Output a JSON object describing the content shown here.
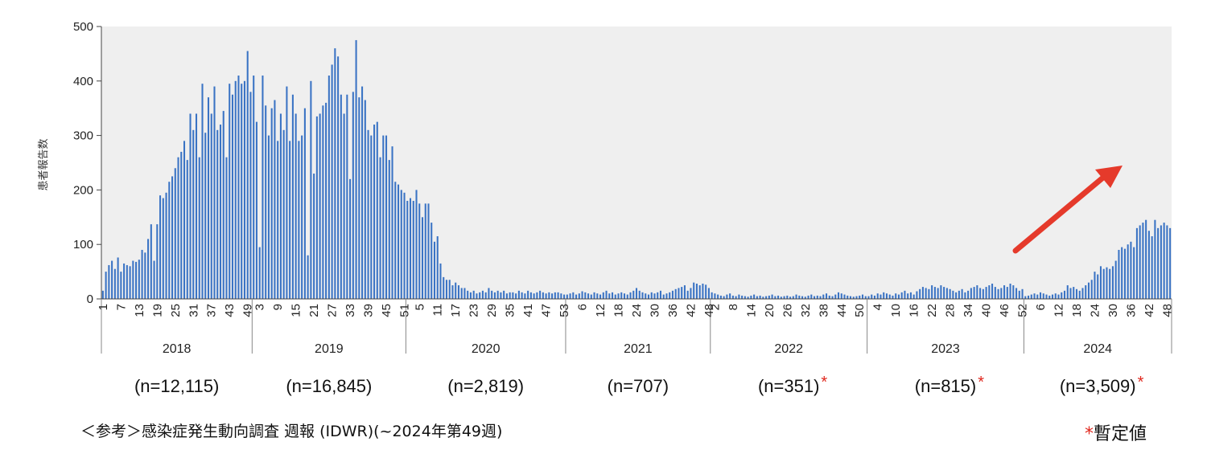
{
  "chart_data": {
    "type": "bar",
    "ylabel": "患者報告数",
    "ylim": [
      0,
      500
    ],
    "yticks": [
      0,
      100,
      200,
      300,
      400,
      500
    ],
    "bar_color": "#3a73c4",
    "background_color": "#efefef",
    "arrow_color": "#e53a2b",
    "grid": false,
    "years": [
      {
        "year": "2018",
        "count_label": "(n=12,115)",
        "provisional": false,
        "week_labels": [
          "1",
          "7",
          "13",
          "19",
          "25",
          "31",
          "37",
          "43",
          "49"
        ],
        "values": [
          15,
          50,
          62,
          70,
          55,
          76,
          50,
          65,
          62,
          60,
          70,
          68,
          72,
          90,
          85,
          110,
          137,
          70,
          137,
          190,
          185,
          195,
          215,
          225,
          240,
          260,
          270,
          290,
          255,
          340,
          310,
          340,
          260,
          395,
          305,
          370,
          340,
          390,
          310,
          320,
          345,
          260,
          395,
          375,
          400,
          410,
          395,
          400,
          455,
          380
        ]
      },
      {
        "year": "2019",
        "count_label": "(n=16,845)",
        "provisional": false,
        "week_labels": [
          "3",
          "9",
          "15",
          "21",
          "27",
          "33",
          "39",
          "45",
          "51"
        ],
        "values": [
          410,
          325,
          95,
          410,
          355,
          300,
          350,
          365,
          290,
          340,
          310,
          390,
          290,
          375,
          340,
          290,
          300,
          350,
          80,
          400,
          230,
          335,
          340,
          355,
          360,
          410,
          430,
          460,
          445,
          375,
          340,
          375,
          220,
          380,
          475,
          370,
          390,
          365,
          310,
          300,
          320,
          325,
          260,
          300,
          300,
          255,
          280,
          215,
          210,
          200,
          195
        ]
      },
      {
        "year": "2020",
        "count_label": "(n=2,819)",
        "provisional": false,
        "week_labels": [
          "5",
          "11",
          "17",
          "23",
          "29",
          "35",
          "41",
          "47",
          "53"
        ],
        "values": [
          180,
          185,
          180,
          200,
          175,
          150,
          175,
          175,
          140,
          105,
          115,
          65,
          40,
          35,
          35,
          25,
          30,
          25,
          20,
          20,
          15,
          12,
          15,
          10,
          12,
          15,
          12,
          20,
          15,
          12,
          15,
          12,
          15,
          10,
          12,
          12,
          10,
          15,
          12,
          10,
          15,
          12,
          10,
          12,
          15,
          12,
          10,
          12,
          10,
          12,
          12,
          10,
          8
        ]
      },
      {
        "year": "2021",
        "count_label": "(n=707)",
        "provisional": false,
        "week_labels": [
          "6",
          "12",
          "18",
          "24",
          "30",
          "36",
          "42",
          "48"
        ],
        "values": [
          8,
          10,
          12,
          8,
          10,
          14,
          12,
          10,
          8,
          12,
          10,
          8,
          12,
          15,
          10,
          12,
          8,
          10,
          12,
          10,
          8,
          12,
          15,
          20,
          15,
          12,
          10,
          8,
          12,
          10,
          12,
          15,
          8,
          10,
          12,
          15,
          18,
          20,
          22,
          25,
          15,
          20,
          30,
          28,
          25,
          28,
          26,
          20
        ]
      },
      {
        "year": "2022",
        "count_label": "(n=351)",
        "provisional": true,
        "week_labels": [
          "2",
          "8",
          "14",
          "20",
          "26",
          "32",
          "38",
          "44",
          "50"
        ],
        "values": [
          12,
          10,
          8,
          6,
          5,
          8,
          10,
          6,
          5,
          8,
          6,
          5,
          4,
          6,
          8,
          5,
          6,
          4,
          5,
          6,
          8,
          5,
          6,
          4,
          5,
          6,
          4,
          5,
          8,
          6,
          5,
          4,
          6,
          8,
          5,
          6,
          5,
          8,
          10,
          6,
          5,
          8,
          12,
          10,
          8,
          6,
          5,
          4,
          5,
          6,
          8,
          5
        ]
      },
      {
        "year": "2023",
        "count_label": "(n=815)",
        "provisional": true,
        "week_labels": [
          "4",
          "10",
          "16",
          "22",
          "28",
          "34",
          "40",
          "46",
          "52"
        ],
        "values": [
          5,
          8,
          6,
          10,
          8,
          12,
          10,
          8,
          6,
          10,
          8,
          12,
          15,
          10,
          12,
          8,
          14,
          18,
          22,
          20,
          18,
          25,
          22,
          20,
          25,
          22,
          20,
          18,
          15,
          12,
          15,
          18,
          12,
          15,
          20,
          22,
          25,
          20,
          18,
          22,
          25,
          28,
          22,
          18,
          20,
          25,
          22,
          28,
          25,
          20,
          15,
          18
        ]
      },
      {
        "year": "2024",
        "count_label": "(n=3,509)",
        "provisional": true,
        "week_labels": [
          "6",
          "12",
          "18",
          "24",
          "30",
          "36",
          "42",
          "48"
        ],
        "values": [
          5,
          6,
          8,
          10,
          8,
          12,
          10,
          8,
          6,
          8,
          10,
          8,
          12,
          15,
          25,
          20,
          22,
          18,
          15,
          20,
          25,
          30,
          35,
          50,
          45,
          60,
          55,
          58,
          55,
          60,
          70,
          90,
          95,
          92,
          100,
          105,
          95,
          130,
          135,
          140,
          145,
          125,
          115,
          145,
          130,
          135,
          140,
          135,
          130
        ]
      }
    ]
  },
  "footnote": "＜参考＞感染症発生動向調査 週報 (IDWR)(~2024年第49週)",
  "legend": {
    "marker": "*",
    "label": "暫定値"
  }
}
